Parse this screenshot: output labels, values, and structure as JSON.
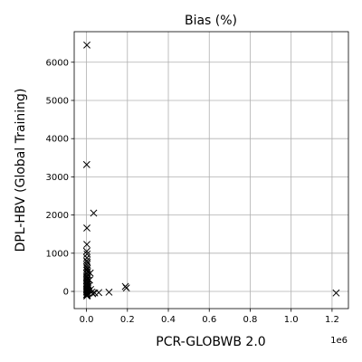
{
  "chart_data": {
    "type": "scatter",
    "title": "Bias (%)",
    "xlabel": "PCR-GLOBWB 2.0",
    "ylabel": "DPL-HBV (Global Training)",
    "x_offset_text": "1e6",
    "xlim": [
      -60000,
      1280000
    ],
    "ylim": [
      -450,
      6800
    ],
    "xticks": [
      0,
      200000,
      400000,
      600000,
      800000,
      1000000,
      1200000
    ],
    "xtick_labels": [
      "0.0",
      "0.2",
      "0.4",
      "0.6",
      "0.8",
      "1.0",
      "1.2"
    ],
    "yticks": [
      0,
      1000,
      2000,
      3000,
      4000,
      5000,
      6000
    ],
    "ytick_labels": [
      "0",
      "1000",
      "2000",
      "3000",
      "4000",
      "5000",
      "6000"
    ],
    "grid": true,
    "marker": "x",
    "marker_color": "#000000",
    "series": [
      {
        "points": [
          [
            2000,
            6450
          ],
          [
            1000,
            3320
          ],
          [
            2000,
            1660
          ],
          [
            35000,
            2050
          ],
          [
            2000,
            1230
          ],
          [
            1000,
            1050
          ],
          [
            3000,
            980
          ],
          [
            2000,
            880
          ],
          [
            1000,
            800
          ],
          [
            4000,
            760
          ],
          [
            2000,
            700
          ],
          [
            1000,
            640
          ],
          [
            3000,
            600
          ],
          [
            2000,
            560
          ],
          [
            5000,
            520
          ],
          [
            1000,
            480
          ],
          [
            3000,
            450
          ],
          [
            8000,
            430
          ],
          [
            2000,
            400
          ],
          [
            1000,
            370
          ],
          [
            4000,
            340
          ],
          [
            2000,
            310
          ],
          [
            1000,
            280
          ],
          [
            6000,
            260
          ],
          [
            3000,
            240
          ],
          [
            2000,
            210
          ],
          [
            1000,
            190
          ],
          [
            5000,
            170
          ],
          [
            2000,
            150
          ],
          [
            10000,
            140
          ],
          [
            1000,
            120
          ],
          [
            3000,
            100
          ],
          [
            2000,
            80
          ],
          [
            7000,
            70
          ],
          [
            1000,
            50
          ],
          [
            4000,
            30
          ],
          [
            2000,
            10
          ],
          [
            1000,
            -10
          ],
          [
            3000,
            -30
          ],
          [
            6000,
            -50
          ],
          [
            2000,
            -70
          ],
          [
            1000,
            -90
          ],
          [
            4000,
            -100
          ],
          [
            2000,
            -120
          ],
          [
            18000,
            480
          ],
          [
            15000,
            300
          ],
          [
            12000,
            150
          ],
          [
            20000,
            50
          ],
          [
            25000,
            -20
          ],
          [
            30000,
            -60
          ],
          [
            40000,
            -40
          ],
          [
            60000,
            -30
          ],
          [
            110000,
            -20
          ],
          [
            190000,
            130
          ],
          [
            195000,
            90
          ],
          [
            1220000,
            -40
          ]
        ]
      }
    ]
  }
}
